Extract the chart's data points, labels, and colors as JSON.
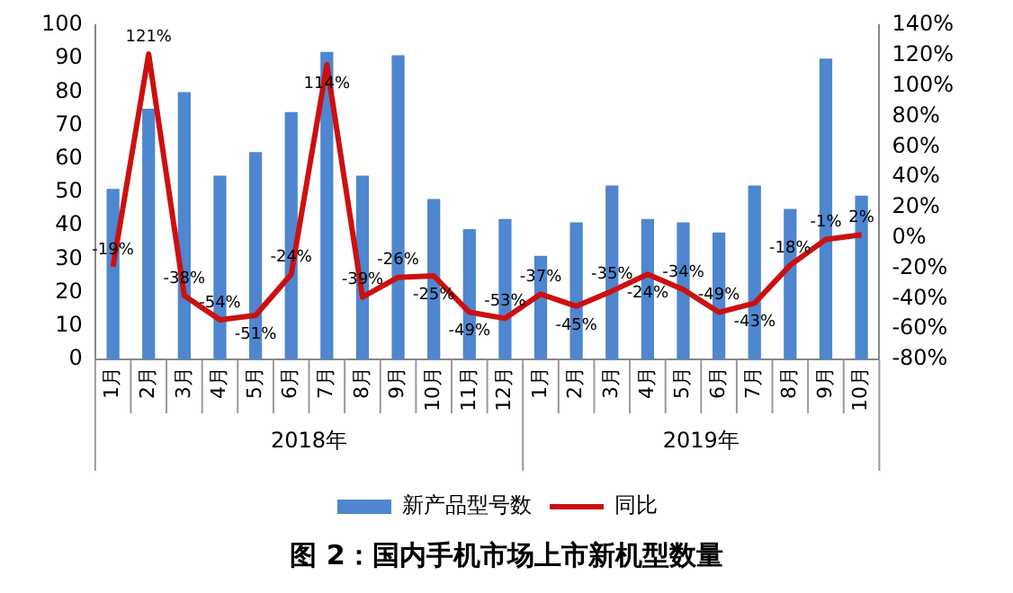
{
  "chart_data": {
    "type": "bar",
    "title": "图 2：国内手机市场上市新机型数量",
    "categories": [
      "1月",
      "2月",
      "3月",
      "4月",
      "5月",
      "6月",
      "7月",
      "8月",
      "9月",
      "10月",
      "11月",
      "12月",
      "1月",
      "2月",
      "3月",
      "4月",
      "5月",
      "6月",
      "7月",
      "8月",
      "9月",
      "10月"
    ],
    "series": [
      {
        "name": "新产品型号数",
        "color": "#4f86d0",
        "values": [
          51,
          75,
          80,
          55,
          62,
          74,
          92,
          55,
          91,
          48,
          39,
          42,
          31,
          41,
          52,
          42,
          41,
          38,
          52,
          45,
          90,
          49
        ]
      },
      {
        "name": "同比",
        "type": "line",
        "axis": "y2",
        "color": "#cc1010",
        "values": [
          -19,
          121,
          -38,
          -54,
          -51,
          -24,
          114,
          -39,
          -26,
          -25,
          -49,
          -53,
          -37,
          -45,
          -35,
          -24,
          -34,
          -49,
          -43,
          -18,
          -1,
          2
        ],
        "value_labels": [
          "-19%",
          "121%",
          "-38%",
          "-54%",
          "-51%",
          "-24%",
          "114%",
          "-39%",
          "-26%",
          "-25%",
          "-49%",
          "-53%",
          "-37%",
          "-45%",
          "-35%",
          "-24%",
          "-34%",
          "-49%",
          "-43%",
          "-18%",
          "-1%",
          "2%"
        ]
      }
    ],
    "annotations": [
      "2018年",
      "2019年"
    ],
    "ylim": [
      0,
      100
    ],
    "yticks": [
      0,
      10,
      20,
      30,
      40,
      50,
      60,
      70,
      80,
      90,
      100
    ],
    "y2lim": [
      -80,
      140
    ],
    "y2ticks": [
      {
        "value": -80,
        "label": "-80%"
      },
      {
        "value": -60,
        "label": "-60%"
      },
      {
        "value": -40,
        "label": "-40%"
      },
      {
        "value": -20,
        "label": "-20%"
      },
      {
        "value": 0,
        "label": "0%"
      },
      {
        "value": 20,
        "label": "20%"
      },
      {
        "value": 40,
        "label": "40%"
      },
      {
        "value": 60,
        "label": "60%"
      },
      {
        "value": 80,
        "label": "80%"
      },
      {
        "value": 100,
        "label": "100%"
      },
      {
        "value": 120,
        "label": "120%"
      },
      {
        "value": 140,
        "label": "140%"
      }
    ],
    "grid": false,
    "legend": "bottom",
    "marker": "none"
  }
}
